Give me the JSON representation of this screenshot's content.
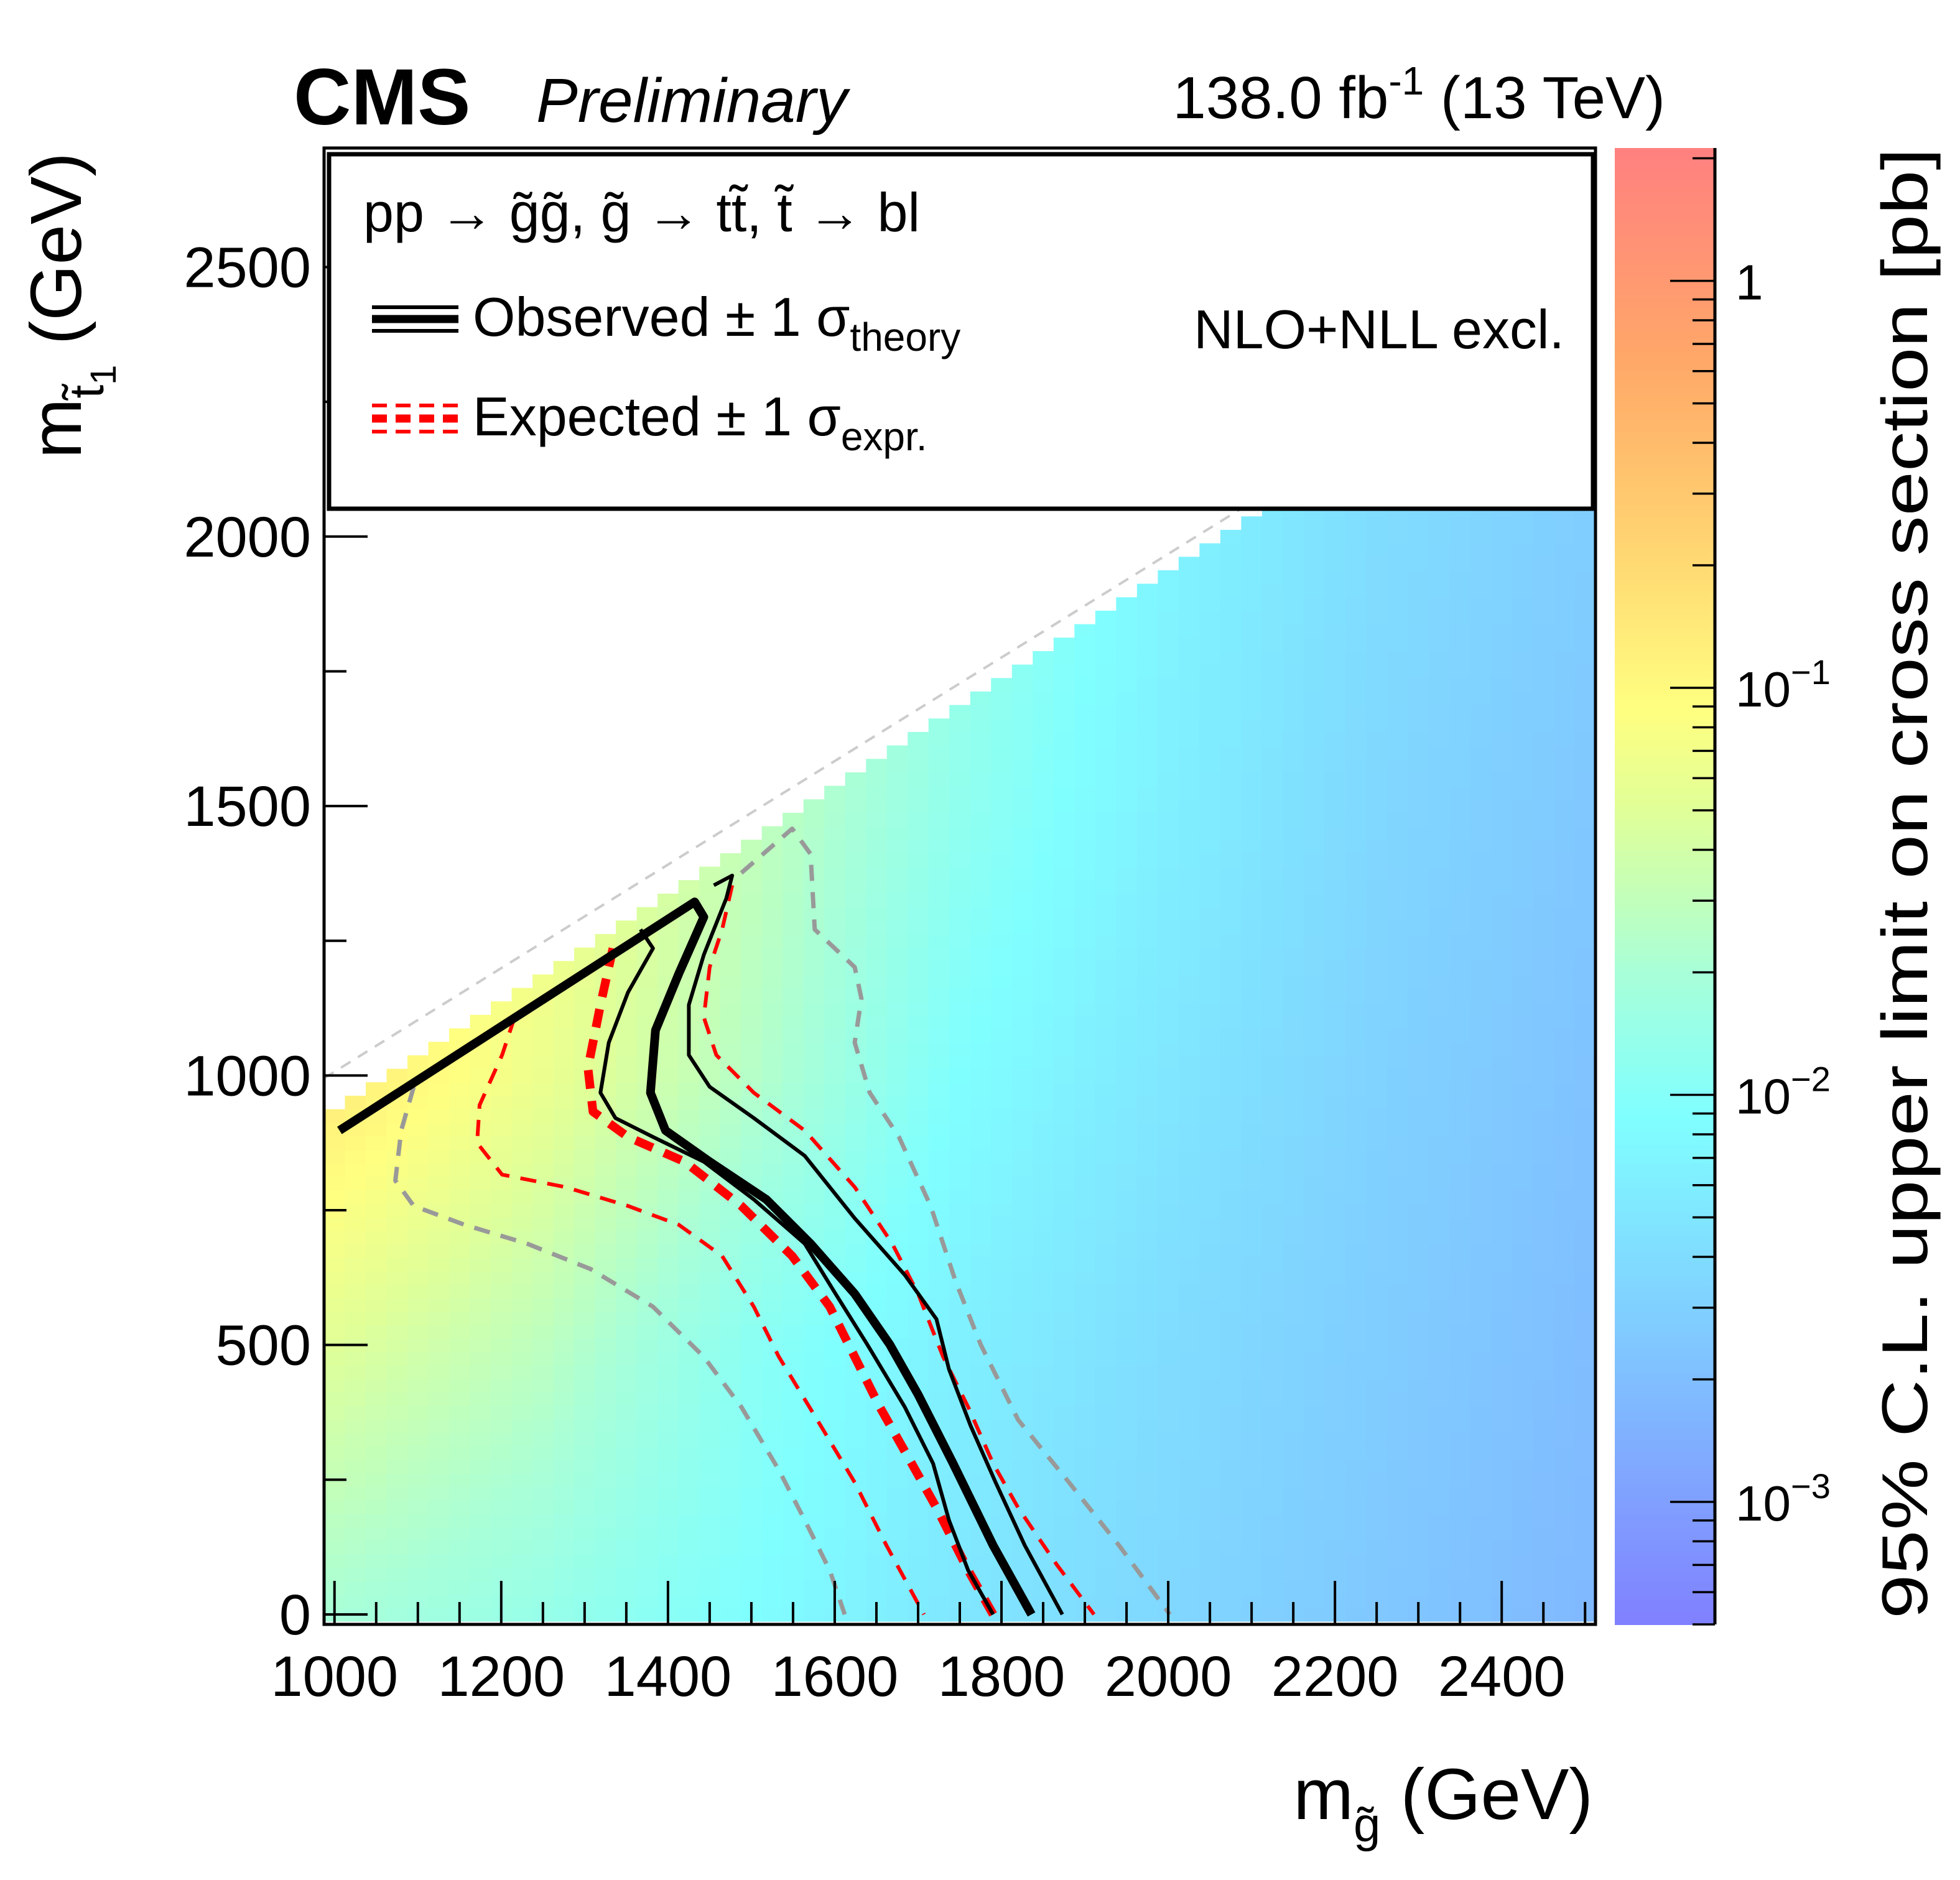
{
  "header": {
    "experiment": "CMS",
    "status": "Preliminary",
    "lumi_main": "138.0 fb",
    "lumi_sup": "-1",
    "lumi_energy": " (13 TeV)"
  },
  "legend": {
    "process": "pp → g̃g̃, g̃ → tt̃, t̃ → bl",
    "observed_label": "Observed ± 1 σ",
    "observed_sub": "theory",
    "expected_label": "Expected ± 1 σ",
    "expected_sub": "expr.",
    "xsec_note": "NLO+NLL excl."
  },
  "chart_data": {
    "type": "heatmap",
    "title": "",
    "xlabel": {
      "main": "m",
      "sub": "g̃",
      "unit": " (GeV)"
    },
    "ylabel": {
      "main": "m",
      "sub": "t̃",
      "subsub": "1",
      "unit": " (GeV)"
    },
    "zlabel": "95% C.L. upper limit on cross section [pb]",
    "xlim": [
      987.5,
      2512.5
    ],
    "ylim": [
      -18.5,
      2721
    ],
    "zlim": [
      0.0005,
      2.12
    ],
    "zscale": "log",
    "x_ticks": [
      "1000",
      "1200",
      "1400",
      "1600",
      "1800",
      "2000",
      "2200",
      "2400"
    ],
    "y_ticks": [
      "0",
      "500",
      "1000",
      "1500",
      "2000",
      "2500"
    ],
    "z_ticks": [
      {
        "value": 1,
        "base": "1",
        "exp": ""
      },
      {
        "value": 0.1,
        "base": "10",
        "exp": "−1"
      },
      {
        "value": 0.01,
        "base": "10",
        "exp": "−2"
      },
      {
        "value": 0.001,
        "base": "10",
        "exp": "−3"
      }
    ],
    "bin_size": 25,
    "allowed_region": "mstop <= mgluino - 60",
    "log10_limit_grid": {
      "x": [
        1000,
        1250,
        1500,
        1750,
        2000,
        2250,
        2500
      ],
      "y": [
        0,
        500,
        1000,
        1500,
        2000,
        2500
      ],
      "z": [
        [
          -1.7,
          -1.85,
          -2.05,
          -2.3,
          -2.45,
          -2.6,
          -2.75
        ],
        [
          -1.3,
          -1.55,
          -1.95,
          -2.2,
          -2.4,
          -2.55,
          -2.7
        ],
        [
          -0.85,
          -1.2,
          -1.6,
          -2.05,
          -2.3,
          -2.5,
          -2.65
        ],
        [
          -0.85,
          -1.1,
          -1.5,
          -1.9,
          -2.2,
          -2.45,
          -2.6
        ],
        [
          -0.85,
          -1.1,
          -1.4,
          -1.8,
          -2.15,
          -2.4,
          -2.55
        ],
        [
          -0.85,
          -1.1,
          -1.4,
          -1.8,
          -2.1,
          -2.35,
          -2.5
        ]
      ]
    },
    "colormap": [
      [
        -3.3,
        "#8080ff"
      ],
      [
        -2.8,
        "#80b4ff"
      ],
      [
        -2.4,
        "#80dcff"
      ],
      [
        -2.05,
        "#80ffff"
      ],
      [
        -1.7,
        "#a8ffd8"
      ],
      [
        -1.3,
        "#e0ff98"
      ],
      [
        -1.05,
        "#ffff80"
      ],
      [
        -0.6,
        "#ffd070"
      ],
      [
        -0.2,
        "#ffa868"
      ],
      [
        0.33,
        "#ff8080"
      ]
    ],
    "series": [
      {
        "name": "Observed",
        "color": "#000000",
        "style": "solid-thick",
        "points": [
          [
            1006,
            898
          ],
          [
            1432,
            1322
          ],
          [
            1443,
            1294
          ],
          [
            1413,
            1189
          ],
          [
            1385,
            1084
          ],
          [
            1379,
            968
          ],
          [
            1397,
            898
          ],
          [
            1450,
            840
          ],
          [
            1518,
            770
          ],
          [
            1571,
            688
          ],
          [
            1624,
            595
          ],
          [
            1666,
            501
          ],
          [
            1700,
            408
          ],
          [
            1742,
            280
          ],
          [
            1790,
            128
          ],
          [
            1836,
            0
          ]
        ]
      },
      {
        "name": "Observed -1 sigma theory",
        "color": "#000000",
        "style": "solid-thin",
        "points": [
          [
            1367,
            1271
          ],
          [
            1382,
            1236
          ],
          [
            1352,
            1154
          ],
          [
            1329,
            1061
          ],
          [
            1319,
            968
          ],
          [
            1337,
            921
          ],
          [
            1382,
            886
          ],
          [
            1443,
            840
          ],
          [
            1503,
            770
          ],
          [
            1564,
            688
          ],
          [
            1601,
            595
          ],
          [
            1639,
            501
          ],
          [
            1684,
            385
          ],
          [
            1718,
            280
          ],
          [
            1737,
            175
          ],
          [
            1760,
            82
          ],
          [
            1790,
            0
          ]
        ]
      },
      {
        "name": "Observed +1 sigma theory",
        "color": "#000000",
        "style": "solid-thin",
        "points": [
          [
            1455,
            1353
          ],
          [
            1477,
            1371
          ],
          [
            1470,
            1329
          ],
          [
            1443,
            1224
          ],
          [
            1425,
            1131
          ],
          [
            1425,
            1038
          ],
          [
            1450,
            979
          ],
          [
            1503,
            921
          ],
          [
            1564,
            851
          ],
          [
            1624,
            735
          ],
          [
            1684,
            630
          ],
          [
            1722,
            548
          ],
          [
            1737,
            455
          ],
          [
            1763,
            350
          ],
          [
            1793,
            245
          ],
          [
            1828,
            128
          ],
          [
            1873,
            0
          ]
        ]
      },
      {
        "name": "Expected",
        "color": "#ff0000",
        "style": "dashed-thick",
        "points": [
          [
            1334,
            1236
          ],
          [
            1319,
            1131
          ],
          [
            1304,
            1014
          ],
          [
            1310,
            933
          ],
          [
            1352,
            886
          ],
          [
            1420,
            840
          ],
          [
            1488,
            758
          ],
          [
            1549,
            665
          ],
          [
            1594,
            571
          ],
          [
            1624,
            478
          ],
          [
            1654,
            385
          ],
          [
            1688,
            292
          ],
          [
            1722,
            198
          ],
          [
            1760,
            82
          ],
          [
            1790,
            0
          ]
        ]
      },
      {
        "name": "Expected -1 sigma expr",
        "color": "#ff0000",
        "style": "dashed-thin",
        "points": [
          [
            1216,
            1108
          ],
          [
            1201,
            1038
          ],
          [
            1174,
            945
          ],
          [
            1171,
            875
          ],
          [
            1201,
            816
          ],
          [
            1277,
            793
          ],
          [
            1352,
            758
          ],
          [
            1413,
            723
          ],
          [
            1465,
            665
          ],
          [
            1503,
            571
          ],
          [
            1533,
            478
          ],
          [
            1579,
            361
          ],
          [
            1624,
            245
          ],
          [
            1662,
            128
          ],
          [
            1707,
            0
          ]
        ]
      },
      {
        "name": "Expected +1 sigma expr",
        "color": "#ff0000",
        "style": "dashed-thin",
        "points": [
          [
            1477,
            1353
          ],
          [
            1465,
            1271
          ],
          [
            1450,
            1201
          ],
          [
            1443,
            1108
          ],
          [
            1458,
            1038
          ],
          [
            1503,
            968
          ],
          [
            1564,
            898
          ],
          [
            1624,
            793
          ],
          [
            1669,
            688
          ],
          [
            1700,
            595
          ],
          [
            1730,
            478
          ],
          [
            1760,
            385
          ],
          [
            1790,
            280
          ],
          [
            1820,
            198
          ],
          [
            1866,
            93
          ],
          [
            1911,
            0
          ]
        ]
      },
      {
        "name": "Expected -2 sigma expr",
        "color": "#999999",
        "style": "dashed-grey",
        "points": [
          [
            1095,
            979
          ],
          [
            1080,
            898
          ],
          [
            1073,
            805
          ],
          [
            1095,
            758
          ],
          [
            1156,
            723
          ],
          [
            1231,
            688
          ],
          [
            1307,
            641
          ],
          [
            1382,
            571
          ],
          [
            1443,
            478
          ],
          [
            1488,
            385
          ],
          [
            1533,
            268
          ],
          [
            1564,
            175
          ],
          [
            1594,
            82
          ],
          [
            1612,
            0
          ]
        ]
      },
      {
        "name": "Expected +2 sigma expr",
        "color": "#999999",
        "style": "dashed-grey",
        "points": [
          [
            1488,
            1376
          ],
          [
            1549,
            1458
          ],
          [
            1571,
            1411
          ],
          [
            1576,
            1271
          ],
          [
            1624,
            1201
          ],
          [
            1632,
            1143
          ],
          [
            1624,
            1061
          ],
          [
            1642,
            968
          ],
          [
            1677,
            886
          ],
          [
            1715,
            758
          ],
          [
            1745,
            618
          ],
          [
            1775,
            501
          ],
          [
            1820,
            361
          ],
          [
            1881,
            245
          ],
          [
            1941,
            128
          ],
          [
            2002,
            0
          ]
        ]
      },
      {
        "name": "Kinematic limit",
        "color": "#cccccc",
        "style": "dashed-light",
        "points": [
          [
            987.5,
            995
          ],
          [
            2200,
            2160
          ]
        ]
      }
    ]
  }
}
